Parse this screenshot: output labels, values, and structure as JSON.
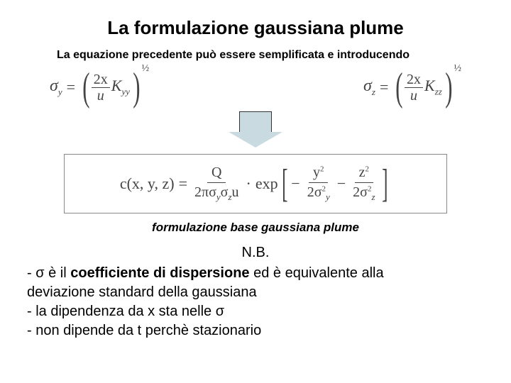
{
  "title": "La formulazione gaussiana plume",
  "subtitle": "La equazione precedente può essere semplificata e introducendo",
  "eq_left": {
    "lhs_sigma": "σ",
    "lhs_sub": "y",
    "num": "2x",
    "den": "u",
    "k": "K",
    "k_sub": "yy",
    "exp": "½"
  },
  "eq_right": {
    "lhs_sigma": "σ",
    "lhs_sub": "z",
    "num": "2x",
    "den": "u",
    "k": "K",
    "k_sub": "zz",
    "exp": "½"
  },
  "main_formula": {
    "c": "c",
    "args": "(x, y, z)",
    "Q": "Q",
    "two_pi": "2π",
    "sy": "σ",
    "sy_sub": "y",
    "sz": "σ",
    "sz_sub": "z",
    "u": "u",
    "exp_label": "exp",
    "y2": "y",
    "z2": "z",
    "two": "2"
  },
  "caption": "formulazione base gaussiana plume",
  "notes": {
    "nb": "N.B.",
    "line1a": "- σ  è il ",
    "line1b": "coefficiente di dispersione",
    "line1c": " ed è equivalente alla",
    "line2": "  deviazione standard della gaussiana",
    "line3": "- la dipendenza da x sta nelle σ",
    "line4": "- non dipende da t perchè stazionario"
  },
  "style": {
    "background": "#ffffff",
    "text_color": "#000000",
    "formula_color": "#444444",
    "arrow_fill": "#c9dbe1",
    "arrow_border": "#333333",
    "box_border": "#888888",
    "title_fontsize": 26,
    "subtitle_fontsize": 16,
    "notes_fontsize": 20
  }
}
